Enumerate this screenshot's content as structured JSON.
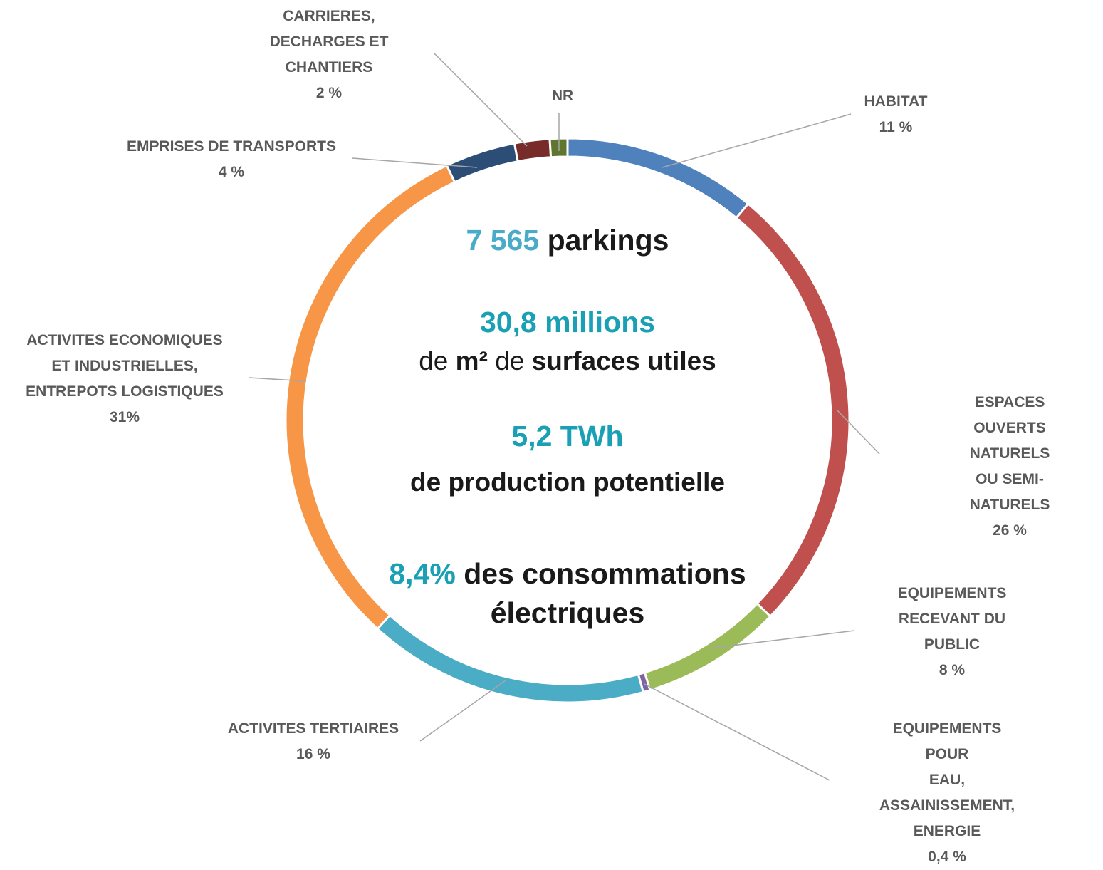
{
  "chart_data": {
    "type": "donut",
    "categories": [
      "HABITAT",
      "ESPACES OUVERTS\nNATURELS OU SEMI-\nNATURELS",
      "EQUIPEMENTS\nRECEVANT DU\nPUBLIC",
      "EQUIPEMENTS POUR\nEAU, ASSAINISSEMENT,\nENERGIE",
      "ACTIVITES TERTIAIRES",
      "ACTIVITES ECONOMIQUES\nET INDUSTRIELLES,\nENTREPOTS LOGISTIQUES",
      "EMPRISES DE TRANSPORTS",
      "CARRIERES,\nDECHARGES ET\nCHANTIERS",
      "NR"
    ],
    "values": [
      11,
      26,
      8,
      0.4,
      16,
      31,
      4,
      2,
      1
    ],
    "value_labels": [
      "11 %",
      "26 %",
      "8 %",
      "0,4 %",
      "16 %",
      "31%",
      "4 %",
      "2 %",
      null
    ],
    "colors": [
      "#4f81bd",
      "#c0504d",
      "#9bbb59",
      "#8064a2",
      "#4bacc6",
      "#f79646",
      "#2c4d75",
      "#772c2a",
      "#5f7530"
    ],
    "center": [
      "7 565",
      "parkings",
      "30,8 millions",
      "de",
      "m²",
      "de",
      "surfaces utiles",
      "5,2 TWh",
      "de production potentielle",
      "8,4%",
      "des consommations",
      "électriques"
    ]
  }
}
